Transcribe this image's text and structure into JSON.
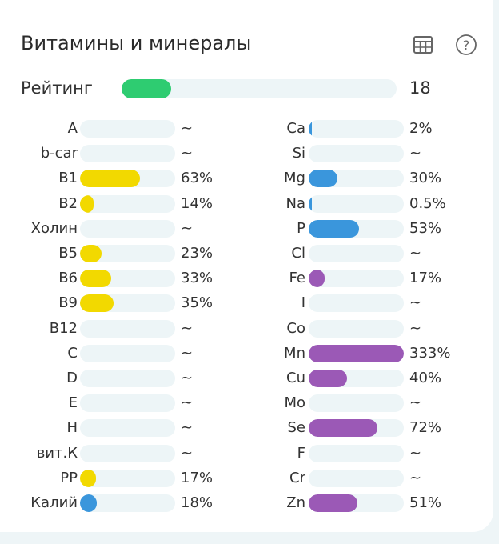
{
  "header": {
    "title": "Витамины и минералы",
    "table_icon": "table-icon",
    "help_icon": "help-circle-icon"
  },
  "rating": {
    "label": "Рейтинг",
    "value": "18",
    "percent": 18,
    "color": "#2ecc71"
  },
  "colors": {
    "track": "#edf5f7",
    "vitamin": "#f2d900",
    "potassium": "#3a96dc",
    "macro": "#3a96dc",
    "micro": "#9b59b6"
  },
  "vitamins": [
    {
      "label": "A",
      "value": "~",
      "percent": 0,
      "color": "#f2d900"
    },
    {
      "label": "b-car",
      "value": "~",
      "percent": 0,
      "color": "#f2d900"
    },
    {
      "label": "B1",
      "value": "63%",
      "percent": 63,
      "color": "#f2d900"
    },
    {
      "label": "B2",
      "value": "14%",
      "percent": 14,
      "color": "#f2d900"
    },
    {
      "label": "Холин",
      "value": "~",
      "percent": 0,
      "color": "#f2d900"
    },
    {
      "label": "B5",
      "value": "23%",
      "percent": 23,
      "color": "#f2d900"
    },
    {
      "label": "B6",
      "value": "33%",
      "percent": 33,
      "color": "#f2d900"
    },
    {
      "label": "B9",
      "value": "35%",
      "percent": 35,
      "color": "#f2d900"
    },
    {
      "label": "B12",
      "value": "~",
      "percent": 0,
      "color": "#f2d900"
    },
    {
      "label": "C",
      "value": "~",
      "percent": 0,
      "color": "#f2d900"
    },
    {
      "label": "D",
      "value": "~",
      "percent": 0,
      "color": "#f2d900"
    },
    {
      "label": "E",
      "value": "~",
      "percent": 0,
      "color": "#f2d900"
    },
    {
      "label": "H",
      "value": "~",
      "percent": 0,
      "color": "#f2d900"
    },
    {
      "label": "вит.К",
      "value": "~",
      "percent": 0,
      "color": "#f2d900"
    },
    {
      "label": "PP",
      "value": "17%",
      "percent": 17,
      "color": "#f2d900"
    },
    {
      "label": "Калий",
      "value": "18%",
      "percent": 18,
      "color": "#3a96dc"
    }
  ],
  "minerals": [
    {
      "label": "Ca",
      "value": "2%",
      "percent": 2,
      "color": "#3a96dc"
    },
    {
      "label": "Si",
      "value": "~",
      "percent": 0,
      "color": "#3a96dc"
    },
    {
      "label": "Mg",
      "value": "30%",
      "percent": 30,
      "color": "#3a96dc"
    },
    {
      "label": "Na",
      "value": "0.5%",
      "percent": 0.5,
      "color": "#3a96dc"
    },
    {
      "label": "P",
      "value": "53%",
      "percent": 53,
      "color": "#3a96dc"
    },
    {
      "label": "Cl",
      "value": "~",
      "percent": 0,
      "color": "#3a96dc"
    },
    {
      "label": "Fe",
      "value": "17%",
      "percent": 17,
      "color": "#9b59b6"
    },
    {
      "label": "I",
      "value": "~",
      "percent": 0,
      "color": "#9b59b6"
    },
    {
      "label": "Co",
      "value": "~",
      "percent": 0,
      "color": "#9b59b6"
    },
    {
      "label": "Mn",
      "value": "333%",
      "percent": 333,
      "color": "#9b59b6"
    },
    {
      "label": "Cu",
      "value": "40%",
      "percent": 40,
      "color": "#9b59b6"
    },
    {
      "label": "Mo",
      "value": "~",
      "percent": 0,
      "color": "#9b59b6"
    },
    {
      "label": "Se",
      "value": "72%",
      "percent": 72,
      "color": "#9b59b6"
    },
    {
      "label": "F",
      "value": "~",
      "percent": 0,
      "color": "#9b59b6"
    },
    {
      "label": "Cr",
      "value": "~",
      "percent": 0,
      "color": "#9b59b6"
    },
    {
      "label": "Zn",
      "value": "51%",
      "percent": 51,
      "color": "#9b59b6"
    }
  ]
}
